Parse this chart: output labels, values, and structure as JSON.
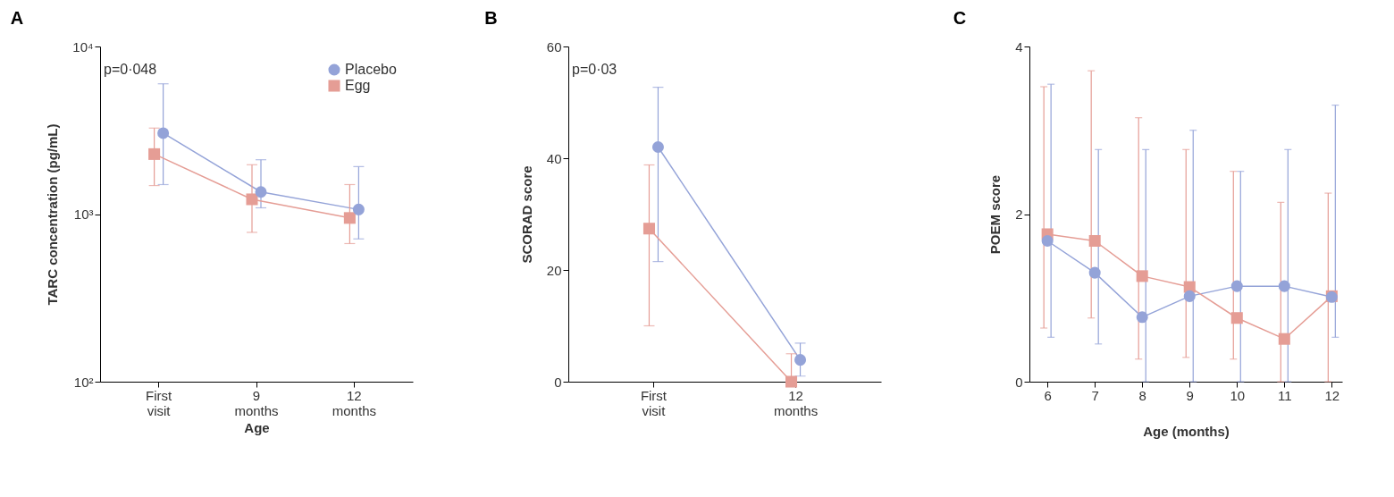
{
  "chart_data": [
    {
      "type": "line",
      "title": "A",
      "xlabel": "Age",
      "ylabel": "TARC concentration (pg/mL)",
      "categories": [
        "First visit",
        "9 months",
        "12 months"
      ],
      "log": true,
      "ylim": [
        100,
        10000
      ],
      "yticks": [
        {
          "value": 100,
          "label": "10²"
        },
        {
          "value": 1000,
          "label": "10³"
        },
        {
          "value": 10000,
          "label": "10⁴"
        }
      ],
      "legend": "top right",
      "annotations": [
        "p=0·048"
      ],
      "series": [
        {
          "name": "Placebo",
          "color": "#94a3d8",
          "marker": "circle",
          "values": [
            3040,
            1355,
            1065
          ],
          "errors": [
            [
              1500,
              5990
            ],
            [
              1090,
              2110
            ],
            [
              711,
              1920
            ]
          ]
        },
        {
          "name": "Egg",
          "color": "#e59d95",
          "marker": "square",
          "values": [
            2280,
            1225,
            948
          ],
          "errors": [
            [
              1480,
              3260
            ],
            [
              778,
              1970
            ],
            [
              667,
              1500
            ]
          ]
        }
      ]
    },
    {
      "type": "line",
      "title": "B",
      "ylabel": "SCORAD score",
      "categories": [
        "First visit",
        "12 months"
      ],
      "ylim": [
        0,
        60
      ],
      "yticks": [
        0,
        20,
        40,
        60
      ],
      "annotations": [
        "p=0·03"
      ],
      "series": [
        {
          "color": "#94a3d8",
          "marker": "circle",
          "values": [
            42,
            3.9
          ],
          "errors": [
            [
              21.5,
              52.7
            ],
            [
              1,
              6.9
            ]
          ]
        },
        {
          "color": "#e59d95",
          "marker": "square",
          "values": [
            27.4,
            0
          ],
          "errors": [
            [
              10,
              38.8
            ],
            [
              0,
              5
            ]
          ]
        }
      ]
    },
    {
      "type": "line",
      "title": "C",
      "xlabel": "Age (months)",
      "ylabel": "POEM score",
      "x": [
        6,
        7,
        8,
        9,
        10,
        11,
        12
      ],
      "xlim": [
        5.62,
        12.22
      ],
      "xticks": [
        6,
        7,
        8,
        9,
        10,
        11,
        12
      ],
      "ylim": [
        0,
        4
      ],
      "yticks": [
        0,
        2,
        4
      ],
      "series": [
        {
          "color": "#94a3d8",
          "marker": "circle",
          "values": [
            1.68,
            1.3,
            0.77,
            1.02,
            1.14,
            1.14,
            1.01
          ],
          "errors": [
            [
              0.53,
              3.55
            ],
            [
              0.45,
              2.77
            ],
            [
              0,
              2.77
            ],
            [
              0,
              3
            ],
            [
              0,
              2.51
            ],
            [
              0,
              2.77
            ],
            [
              0.53,
              3.3
            ]
          ]
        },
        {
          "color": "#e59d95",
          "marker": "square",
          "values": [
            1.76,
            1.68,
            1.26,
            1.13,
            0.76,
            0.51,
            1.02
          ],
          "errors": [
            [
              0.64,
              3.52
            ],
            [
              0.76,
              3.71
            ],
            [
              0.27,
              3.15
            ],
            [
              0.29,
              2.77
            ],
            [
              0.27,
              2.51
            ],
            [
              0,
              2.14
            ],
            [
              0,
              2.25
            ]
          ]
        }
      ]
    }
  ]
}
